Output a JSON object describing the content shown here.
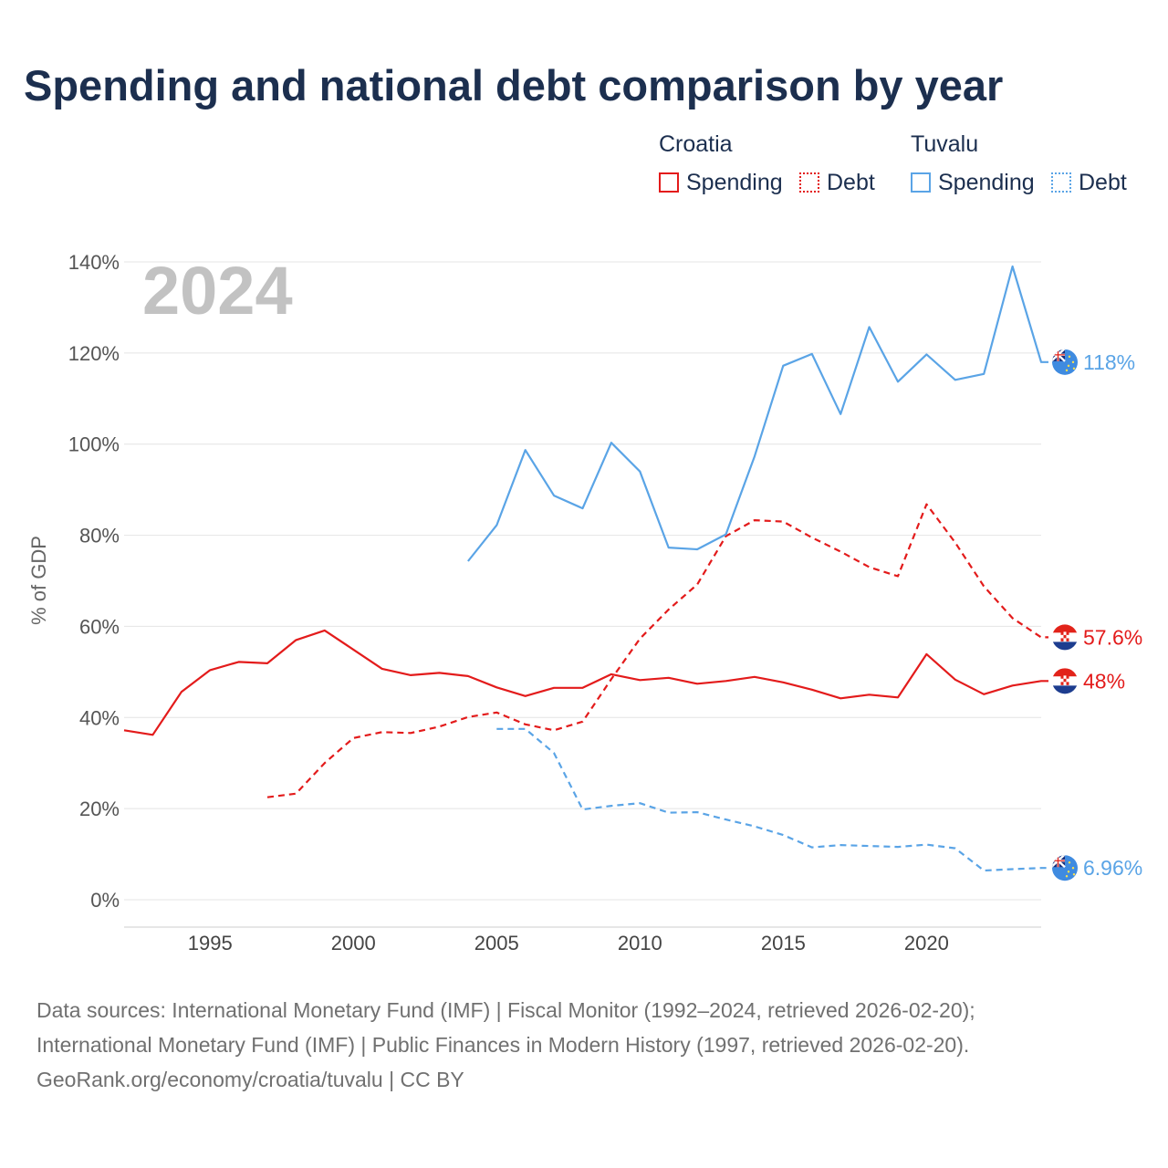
{
  "title": "Spending and national debt comparison by year",
  "legend": {
    "groups": [
      {
        "name": "Croatia",
        "items": [
          {
            "label": "Spending"
          },
          {
            "label": "Debt"
          }
        ]
      },
      {
        "name": "Tuvalu",
        "items": [
          {
            "label": "Spending"
          },
          {
            "label": "Debt"
          }
        ]
      }
    ]
  },
  "footer": {
    "line1": "Data sources: International Monetary Fund (IMF) | Fiscal Monitor (1992–2024, retrieved 2026-02-20);",
    "line2": "International Monetary Fund (IMF) | Public Finances in Modern History (1997, retrieved 2026-02-20).",
    "line3": "GeoRank.org/economy/croatia/tuvalu | CC BY"
  },
  "colors": {
    "croatia": "#e31b1b",
    "tuvalu": "#5aa4e6",
    "grid": "#e4e4e4"
  },
  "chart_data": {
    "type": "line",
    "title": "Spending and national debt comparison by year",
    "ylabel": "% of GDP",
    "xlabel": "",
    "year_label": "2024",
    "xlim": [
      1992,
      2024
    ],
    "ylim": [
      0,
      140
    ],
    "x_ticks": [
      1995,
      2000,
      2005,
      2010,
      2015,
      2020
    ],
    "x_tick_labels": [
      "1995",
      "2000",
      "2005",
      "2010",
      "2015",
      "2020"
    ],
    "y_ticks": [
      0,
      20,
      40,
      60,
      80,
      100,
      120,
      140
    ],
    "y_tick_labels": [
      "0%",
      "20%",
      "40%",
      "60%",
      "80%",
      "100%",
      "120%",
      "140%"
    ],
    "series": [
      {
        "name": "Croatia Spending",
        "country": "croatia",
        "style": "solid",
        "end_label": "48%",
        "x": [
          1992,
          1993,
          1994,
          1995,
          1996,
          1997,
          1998,
          1999,
          2000,
          2001,
          2002,
          2003,
          2004,
          2005,
          2006,
          2007,
          2008,
          2009,
          2010,
          2011,
          2012,
          2013,
          2014,
          2015,
          2016,
          2017,
          2018,
          2019,
          2020,
          2021,
          2022,
          2023,
          2024
        ],
        "y": [
          37.2,
          36.2,
          45.6,
          50.4,
          52.2,
          51.9,
          57.0,
          59.1,
          54.9,
          50.7,
          49.3,
          49.8,
          49.1,
          46.6,
          44.7,
          46.5,
          46.5,
          49.5,
          48.2,
          48.7,
          47.4,
          48.0,
          48.9,
          47.7,
          46.1,
          44.2,
          45.0,
          44.4,
          53.9,
          48.3,
          45.1,
          47.0,
          48.0
        ]
      },
      {
        "name": "Croatia Debt",
        "country": "croatia",
        "style": "dashed",
        "end_label": "57.6%",
        "x": [
          1997,
          1998,
          1999,
          2000,
          2001,
          2002,
          2003,
          2004,
          2005,
          2006,
          2007,
          2008,
          2009,
          2010,
          2011,
          2012,
          2013,
          2014,
          2015,
          2016,
          2017,
          2018,
          2019,
          2020,
          2021,
          2022,
          2023,
          2024
        ],
        "y": [
          22.5,
          23.3,
          30.0,
          35.5,
          36.8,
          36.6,
          38.0,
          40.1,
          41.1,
          38.5,
          37.2,
          39.1,
          48.4,
          57.3,
          63.7,
          69.2,
          79.8,
          83.3,
          83.0,
          79.5,
          76.4,
          73.0,
          71.0,
          86.8,
          78.4,
          68.8,
          61.8,
          57.6
        ]
      },
      {
        "name": "Tuvalu Spending",
        "country": "tuvalu",
        "style": "solid",
        "end_label": "118%",
        "x": [
          2004,
          2005,
          2006,
          2007,
          2008,
          2009,
          2010,
          2011,
          2012,
          2013,
          2014,
          2015,
          2016,
          2017,
          2018,
          2019,
          2020,
          2021,
          2022,
          2023,
          2024
        ],
        "y": [
          74.3,
          82.2,
          98.7,
          88.7,
          85.9,
          100.3,
          94.0,
          77.3,
          76.9,
          80.2,
          97.3,
          117.2,
          119.8,
          106.6,
          125.7,
          113.7,
          119.7,
          114.1,
          115.4,
          139.0,
          118.0
        ]
      },
      {
        "name": "Tuvalu Debt",
        "country": "tuvalu",
        "style": "dashed",
        "end_label": "6.96%",
        "x": [
          2005,
          2006,
          2007,
          2008,
          2009,
          2010,
          2011,
          2012,
          2013,
          2014,
          2015,
          2016,
          2017,
          2018,
          2019,
          2020,
          2021,
          2022,
          2023,
          2024
        ],
        "y": [
          37.5,
          37.5,
          32.2,
          19.8,
          20.6,
          21.2,
          19.1,
          19.2,
          17.6,
          16.1,
          14.2,
          11.5,
          12.0,
          11.8,
          11.6,
          12.1,
          11.3,
          6.4,
          6.7,
          6.96
        ]
      }
    ]
  }
}
